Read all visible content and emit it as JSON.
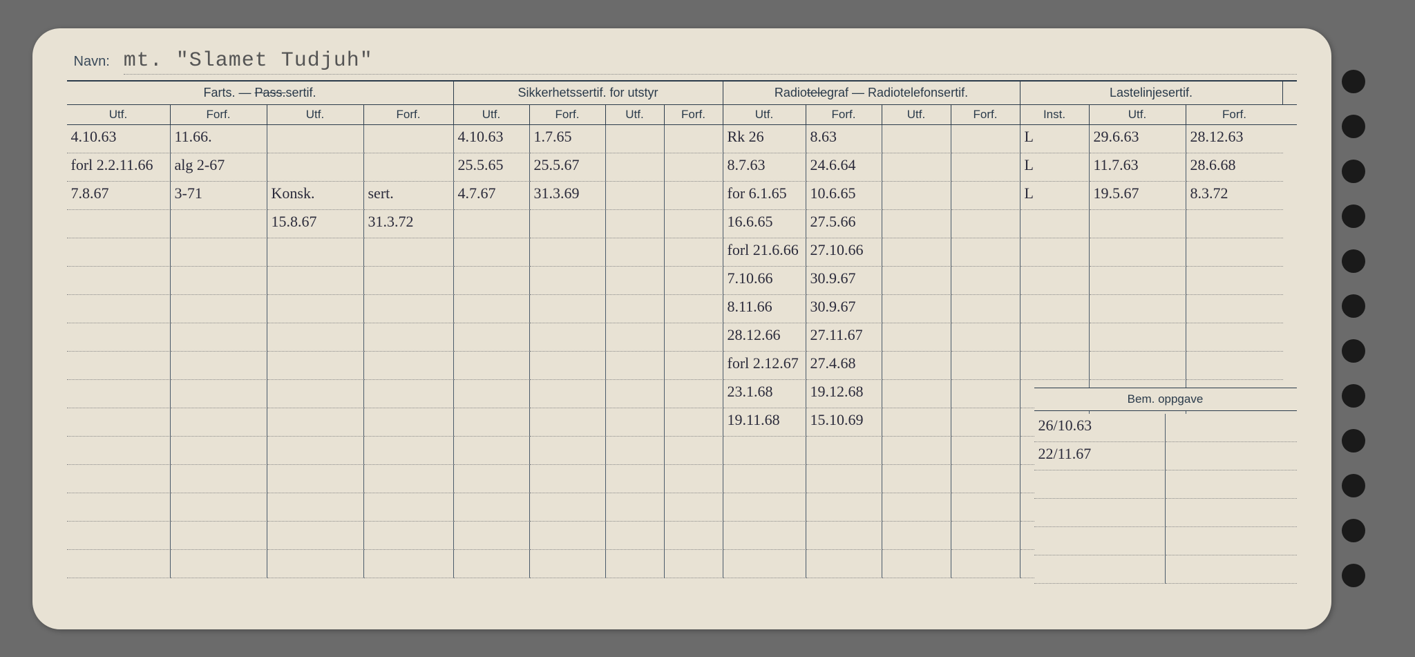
{
  "navn_label": "Navn:",
  "navn_value": "mt. \"Slamet Tudjuh\"",
  "groups": {
    "g1": "Farts. — Pass.sertif.",
    "g1_strike": "Pass.",
    "g2": "Sikkerhetssertif. for utstyr",
    "g3": "Radiotelegraf — Radiotelefonsertif.",
    "g3_strike": "tele",
    "g4": "Lastelinjesertif."
  },
  "sub": {
    "utf": "Utf.",
    "forf": "Forf.",
    "inst": "Inst."
  },
  "rows": [
    {
      "c1": "4.10.63",
      "c2": "11.66.",
      "c3": "",
      "c4": "",
      "c5": "4.10.63",
      "c6": "1.7.65",
      "c7": "",
      "c8": "",
      "c9": "Rk 26",
      "c10": "8.63",
      "c11": "",
      "c12": "",
      "c13": "L",
      "c14": "29.6.63",
      "c15": "28.12.63"
    },
    {
      "c1": "forl 2.2.11.66",
      "c2": "alg 2-67",
      "c3": "",
      "c4": "",
      "c5": "25.5.65",
      "c6": "25.5.67",
      "c7": "",
      "c8": "",
      "c9": "8.7.63",
      "c10": "24.6.64",
      "c11": "",
      "c12": "",
      "c13": "L",
      "c14": "11.7.63",
      "c15": "28.6.68"
    },
    {
      "c1": "7.8.67",
      "c2": "3-71",
      "c3": "Konsk.",
      "c4": "sert.",
      "c5": "4.7.67",
      "c6": "31.3.69",
      "c7": "",
      "c8": "",
      "c9": "for 6.1.65",
      "c10": "10.6.65",
      "c11": "",
      "c12": "",
      "c13": "L",
      "c14": "19.5.67",
      "c15": "8.3.72"
    },
    {
      "c1": "",
      "c2": "",
      "c3": "15.8.67",
      "c4": "31.3.72",
      "c5": "",
      "c6": "",
      "c7": "",
      "c8": "",
      "c9": "16.6.65",
      "c10": "27.5.66",
      "c11": "",
      "c12": "",
      "c13": "",
      "c14": "",
      "c15": ""
    },
    {
      "c1": "",
      "c2": "",
      "c3": "",
      "c4": "",
      "c5": "",
      "c6": "",
      "c7": "",
      "c8": "",
      "c9": "forl 21.6.66",
      "c10": "27.10.66",
      "c11": "",
      "c12": "",
      "c13": "",
      "c14": "",
      "c15": ""
    },
    {
      "c1": "",
      "c2": "",
      "c3": "",
      "c4": "",
      "c5": "",
      "c6": "",
      "c7": "",
      "c8": "",
      "c9": "7.10.66",
      "c10": "30.9.67",
      "c11": "",
      "c12": "",
      "c13": "",
      "c14": "",
      "c15": ""
    },
    {
      "c1": "",
      "c2": "",
      "c3": "",
      "c4": "",
      "c5": "",
      "c6": "",
      "c7": "",
      "c8": "",
      "c9": "8.11.66",
      "c10": "30.9.67",
      "c11": "",
      "c12": "",
      "c13": "",
      "c14": "",
      "c15": ""
    },
    {
      "c1": "",
      "c2": "",
      "c3": "",
      "c4": "",
      "c5": "",
      "c6": "",
      "c7": "",
      "c8": "",
      "c9": "28.12.66",
      "c10": "27.11.67",
      "c11": "",
      "c12": "",
      "c13": "",
      "c14": "",
      "c15": ""
    },
    {
      "c1": "",
      "c2": "",
      "c3": "",
      "c4": "",
      "c5": "",
      "c6": "",
      "c7": "",
      "c8": "",
      "c9": "forl 2.12.67",
      "c10": "27.4.68",
      "c11": "",
      "c12": "",
      "c13": "",
      "c14": "",
      "c15": ""
    },
    {
      "c1": "",
      "c2": "",
      "c3": "",
      "c4": "",
      "c5": "",
      "c6": "",
      "c7": "",
      "c8": "",
      "c9": "23.1.68",
      "c10": "19.12.68",
      "c11": "",
      "c12": "",
      "c13": "",
      "c14": "",
      "c15": ""
    },
    {
      "c1": "",
      "c2": "",
      "c3": "",
      "c4": "",
      "c5": "",
      "c6": "",
      "c7": "",
      "c8": "",
      "c9": "19.11.68",
      "c10": "15.10.69",
      "c11": "",
      "c12": "",
      "c13": "",
      "c14": "",
      "c15": ""
    },
    {
      "c1": "",
      "c2": "",
      "c3": "",
      "c4": "",
      "c5": "",
      "c6": "",
      "c7": "",
      "c8": "",
      "c9": "",
      "c10": "",
      "c11": "",
      "c12": "",
      "c13": "",
      "c14": "",
      "c15": ""
    },
    {
      "c1": "",
      "c2": "",
      "c3": "",
      "c4": "",
      "c5": "",
      "c6": "",
      "c7": "",
      "c8": "",
      "c9": "",
      "c10": "",
      "c11": "",
      "c12": "",
      "c13": "",
      "c14": "",
      "c15": ""
    },
    {
      "c1": "",
      "c2": "",
      "c3": "",
      "c4": "",
      "c5": "",
      "c6": "",
      "c7": "",
      "c8": "",
      "c9": "",
      "c10": "",
      "c11": "",
      "c12": "",
      "c13": "",
      "c14": "",
      "c15": ""
    },
    {
      "c1": "",
      "c2": "",
      "c3": "",
      "c4": "",
      "c5": "",
      "c6": "",
      "c7": "",
      "c8": "",
      "c9": "",
      "c10": "",
      "c11": "",
      "c12": "",
      "c13": "",
      "c14": "",
      "c15": ""
    },
    {
      "c1": "",
      "c2": "",
      "c3": "",
      "c4": "",
      "c5": "",
      "c6": "",
      "c7": "",
      "c8": "",
      "c9": "",
      "c10": "",
      "c11": "",
      "c12": "",
      "c13": "",
      "c14": "",
      "c15": ""
    }
  ],
  "bem_label": "Bem. oppgave",
  "bem_rows": [
    {
      "a": "26/10.63",
      "b": ""
    },
    {
      "a": "22/11.67",
      "b": ""
    },
    {
      "a": "",
      "b": ""
    },
    {
      "a": "",
      "b": ""
    },
    {
      "a": "",
      "b": ""
    },
    {
      "a": "",
      "b": ""
    }
  ],
  "colors": {
    "background": "#6b6b6b",
    "card": "#e8e2d4",
    "ink_print": "#2a3a4a",
    "ink_hand": "#2a2a3a",
    "punch": "#1a1a1a"
  }
}
